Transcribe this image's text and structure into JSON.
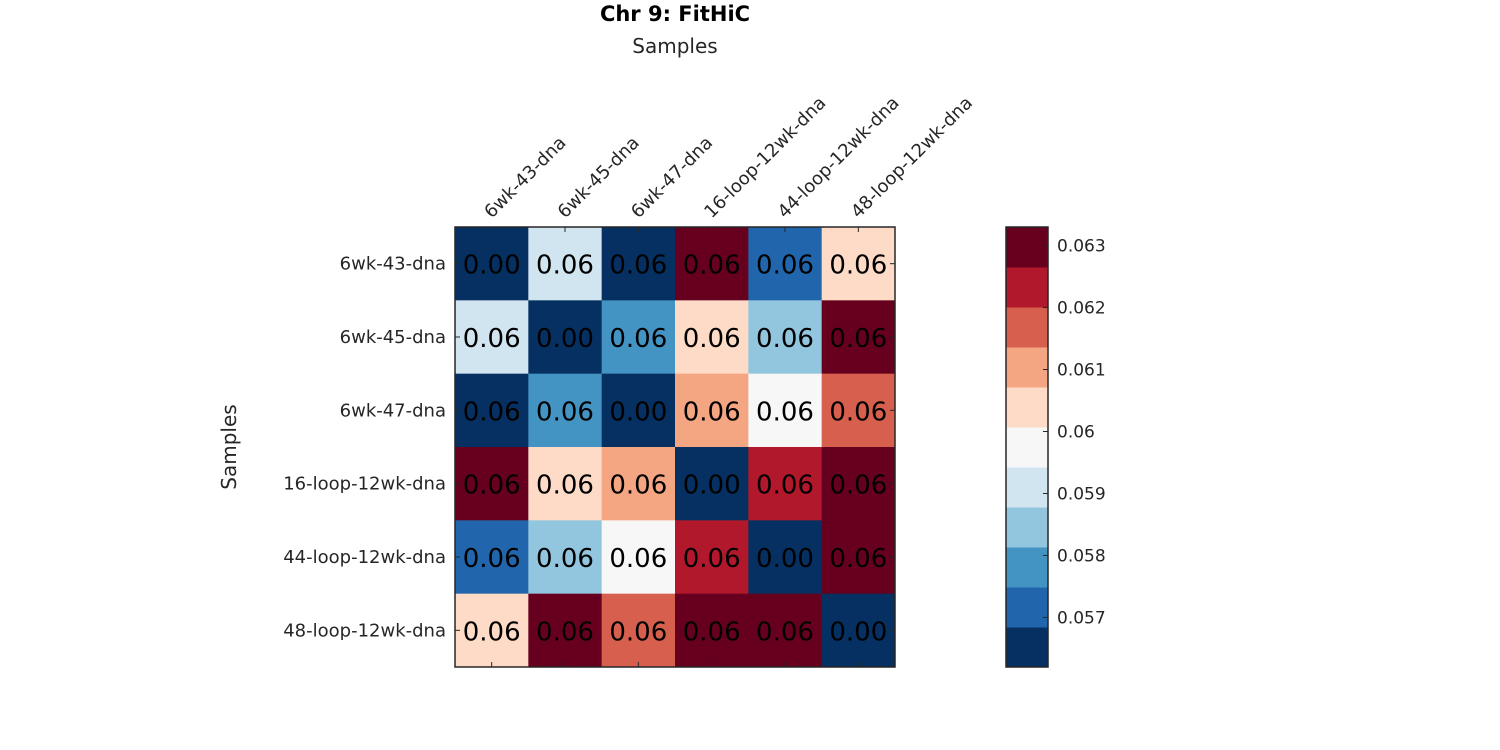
{
  "chart_data": {
    "type": "heatmap",
    "title": "Chr 9: FitHiC",
    "xlabel": "Samples",
    "ylabel": "Samples",
    "x_categories": [
      "6wk-43-dna",
      "6wk-45-dna",
      "6wk-47-dna",
      "16-loop-12wk-dna",
      "44-loop-12wk-dna",
      "48-loop-12wk-dna"
    ],
    "y_categories": [
      "6wk-43-dna",
      "6wk-45-dna",
      "6wk-47-dna",
      "16-loop-12wk-dna",
      "44-loop-12wk-dna",
      "48-loop-12wk-dna"
    ],
    "values": [
      [
        0.0,
        0.0592,
        0.0565,
        0.063,
        0.0572,
        0.0604
      ],
      [
        0.0592,
        0.0,
        0.0578,
        0.0604,
        0.0585,
        0.063
      ],
      [
        0.0565,
        0.0578,
        0.0,
        0.0608,
        0.0599,
        0.0617
      ],
      [
        0.063,
        0.0604,
        0.0608,
        0.0,
        0.0622,
        0.063
      ],
      [
        0.0572,
        0.0585,
        0.0599,
        0.0622,
        0.0,
        0.063
      ],
      [
        0.0604,
        0.063,
        0.0617,
        0.063,
        0.063,
        0.0
      ]
    ],
    "cell_labels": [
      [
        "0.00",
        "0.06",
        "0.06",
        "0.06",
        "0.06",
        "0.06"
      ],
      [
        "0.06",
        "0.00",
        "0.06",
        "0.06",
        "0.06",
        "0.06"
      ],
      [
        "0.06",
        "0.06",
        "0.00",
        "0.06",
        "0.06",
        "0.06"
      ],
      [
        "0.06",
        "0.06",
        "0.06",
        "0.00",
        "0.06",
        "0.06"
      ],
      [
        "0.06",
        "0.06",
        "0.06",
        "0.06",
        "0.00",
        "0.06"
      ],
      [
        "0.06",
        "0.06",
        "0.06",
        "0.06",
        "0.06",
        "0.00"
      ]
    ],
    "colorbar": {
      "min": 0.0562,
      "max": 0.0633,
      "ticks": [
        0.057,
        0.058,
        0.059,
        0.06,
        0.061,
        0.062,
        0.063
      ],
      "tick_labels": [
        "0.057",
        "0.058",
        "0.059",
        "0.06",
        "0.061",
        "0.062",
        "0.063"
      ],
      "colors": [
        "#053061",
        "#2166ac",
        "#4393c3",
        "#92c5de",
        "#d1e5f0",
        "#f7f7f7",
        "#fddbc7",
        "#f4a582",
        "#d6604d",
        "#b2182b",
        "#67001f"
      ]
    },
    "grid": false,
    "legend": "colorbar-right"
  }
}
